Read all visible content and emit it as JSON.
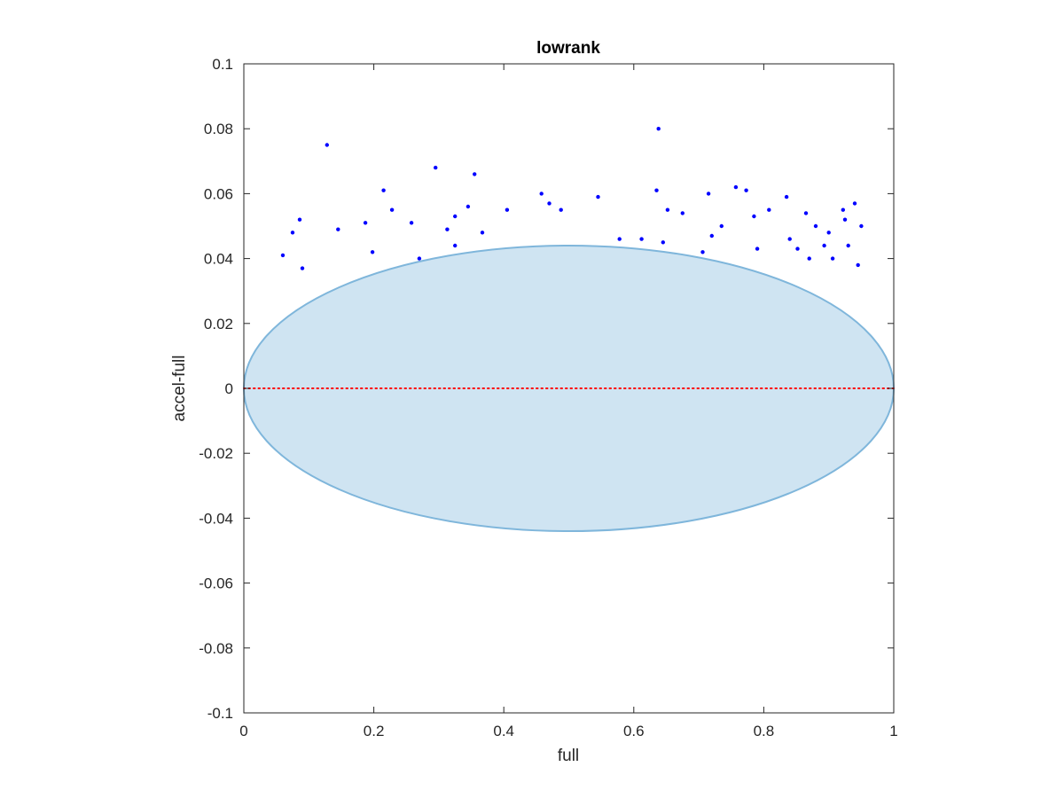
{
  "chart_data": {
    "type": "scatter",
    "title": "lowrank",
    "xlabel": "full",
    "ylabel": "accel-full",
    "xlim": [
      0,
      1
    ],
    "ylim": [
      -0.1,
      0.1
    ],
    "xticks": [
      0,
      0.2,
      0.4,
      0.6,
      0.8,
      1
    ],
    "xtick_labels": [
      "0",
      "0.2",
      "0.4",
      "0.6",
      "0.8",
      "1"
    ],
    "yticks": [
      -0.1,
      -0.08,
      -0.06,
      -0.04,
      -0.02,
      0,
      0.02,
      0.04,
      0.06,
      0.08,
      0.1
    ],
    "ytick_labels": [
      "-0.1",
      "-0.08",
      "-0.06",
      "-0.04",
      "-0.02",
      "0",
      "0.02",
      "0.04",
      "0.06",
      "0.08",
      "0.1"
    ],
    "grid": false,
    "reference_line": {
      "y": 0,
      "style": "dotted",
      "color": "#ff0000"
    },
    "ellipse": {
      "center": [
        0.5,
        0
      ],
      "semi_axis_x": 0.5,
      "semi_axis_y": 0.044,
      "fill": "#cfe4f2",
      "stroke": "#7fb6db"
    },
    "series": [
      {
        "color": "#0000ff",
        "points": [
          [
            0.638,
            0.08
          ],
          [
            0.128,
            0.075
          ],
          [
            0.295,
            0.068
          ],
          [
            0.355,
            0.066
          ],
          [
            0.215,
            0.061
          ],
          [
            0.635,
            0.061
          ],
          [
            0.757,
            0.062
          ],
          [
            0.773,
            0.061
          ],
          [
            0.715,
            0.06
          ],
          [
            0.835,
            0.059
          ],
          [
            0.545,
            0.059
          ],
          [
            0.458,
            0.06
          ],
          [
            0.086,
            0.052
          ],
          [
            0.922,
            0.055
          ],
          [
            0.94,
            0.057
          ],
          [
            0.345,
            0.056
          ],
          [
            0.47,
            0.057
          ],
          [
            0.488,
            0.055
          ],
          [
            0.228,
            0.055
          ],
          [
            0.652,
            0.055
          ],
          [
            0.675,
            0.054
          ],
          [
            0.808,
            0.055
          ],
          [
            0.865,
            0.054
          ],
          [
            0.925,
            0.052
          ],
          [
            0.187,
            0.051
          ],
          [
            0.258,
            0.051
          ],
          [
            0.325,
            0.053
          ],
          [
            0.405,
            0.055
          ],
          [
            0.785,
            0.053
          ],
          [
            0.88,
            0.05
          ],
          [
            0.9,
            0.048
          ],
          [
            0.95,
            0.05
          ],
          [
            0.075,
            0.048
          ],
          [
            0.145,
            0.049
          ],
          [
            0.313,
            0.049
          ],
          [
            0.367,
            0.048
          ],
          [
            0.578,
            0.046
          ],
          [
            0.72,
            0.047
          ],
          [
            0.735,
            0.05
          ],
          [
            0.84,
            0.046
          ],
          [
            0.893,
            0.044
          ],
          [
            0.93,
            0.044
          ],
          [
            0.06,
            0.041
          ],
          [
            0.09,
            0.037
          ],
          [
            0.198,
            0.042
          ],
          [
            0.27,
            0.04
          ],
          [
            0.325,
            0.044
          ],
          [
            0.612,
            0.046
          ],
          [
            0.645,
            0.045
          ],
          [
            0.706,
            0.042
          ],
          [
            0.79,
            0.043
          ],
          [
            0.852,
            0.043
          ],
          [
            0.87,
            0.04
          ],
          [
            0.906,
            0.04
          ],
          [
            0.945,
            0.038
          ]
        ]
      }
    ]
  }
}
